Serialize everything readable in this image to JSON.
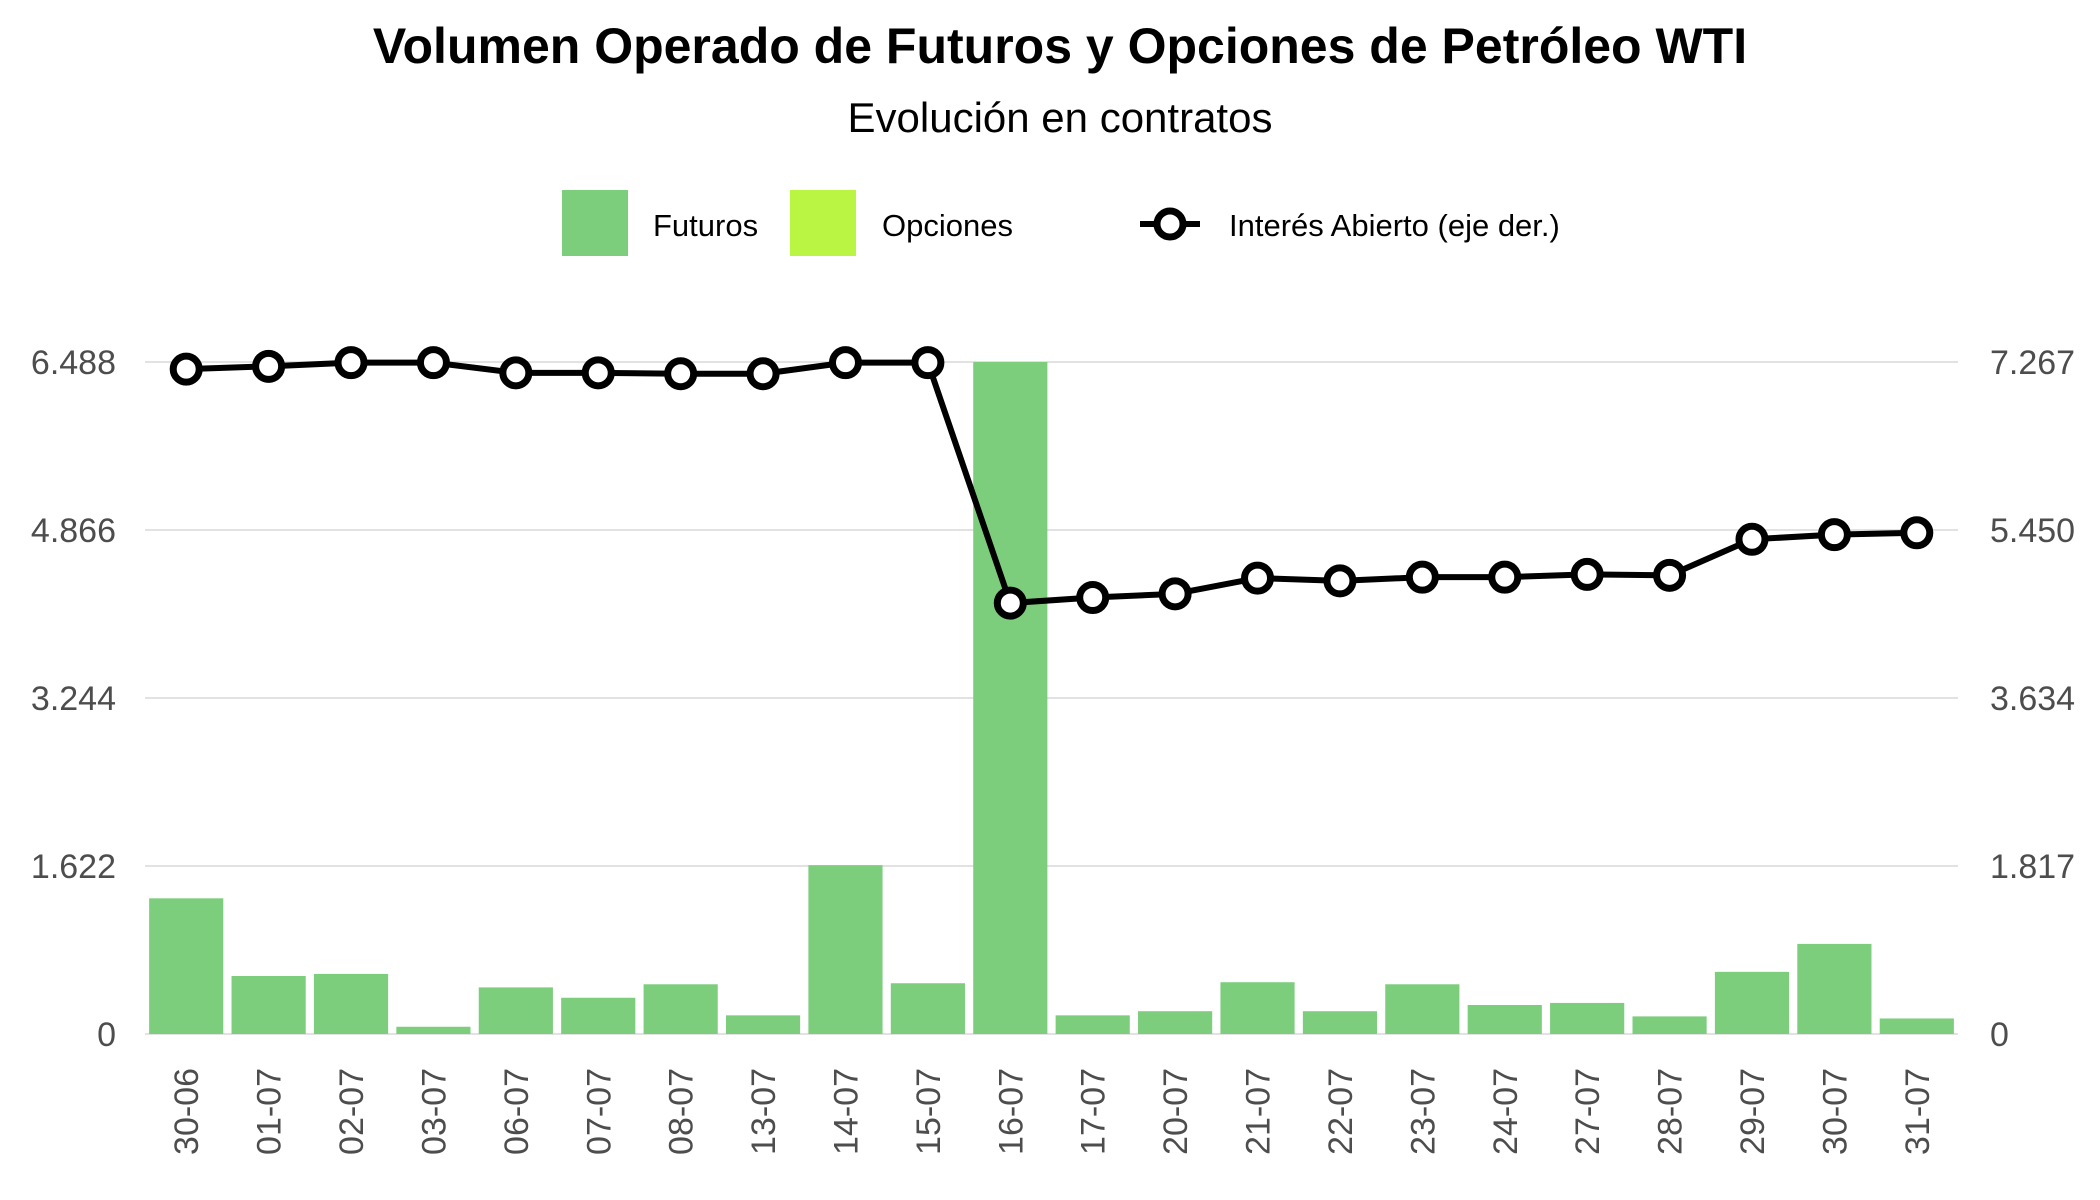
{
  "chart_data": {
    "type": "bar",
    "title": "Volumen Operado de Futuros y Opciones de Petróleo WTI",
    "subtitle": "Evolución en contratos",
    "categories": [
      "30-06",
      "01-07",
      "02-07",
      "03-07",
      "06-07",
      "07-07",
      "08-07",
      "13-07",
      "14-07",
      "15-07",
      "16-07",
      "17-07",
      "20-07",
      "21-07",
      "22-07",
      "23-07",
      "24-07",
      "27-07",
      "28-07",
      "29-07",
      "30-07",
      "31-07"
    ],
    "series": [
      {
        "name": "Futuros",
        "type": "bar",
        "axis": "left",
        "color": "#7ccd7c",
        "values": [
          1310,
          560,
          580,
          70,
          450,
          350,
          480,
          180,
          1630,
          490,
          6488,
          180,
          220,
          500,
          220,
          480,
          280,
          300,
          170,
          600,
          870,
          150
        ]
      },
      {
        "name": "Opciones",
        "type": "bar",
        "axis": "left",
        "color": "#b9f542",
        "values": [
          0,
          0,
          0,
          0,
          0,
          0,
          0,
          0,
          0,
          0,
          0,
          0,
          0,
          0,
          0,
          0,
          0,
          0,
          0,
          0,
          0,
          0
        ]
      },
      {
        "name": "Interés Abierto (eje der.)",
        "type": "line",
        "axis": "right",
        "color": "#000000",
        "values": [
          7190,
          7220,
          7260,
          7260,
          7150,
          7150,
          7140,
          7140,
          7260,
          7260,
          4660,
          4720,
          4760,
          4930,
          4900,
          4940,
          4940,
          4970,
          4960,
          5350,
          5400,
          5420
        ]
      }
    ],
    "y_left": {
      "ylim": [
        0,
        6488
      ],
      "ticks": [
        0,
        1622,
        3244,
        4866,
        6488
      ],
      "tick_labels": [
        "0",
        "1.622",
        "3.244",
        "4.866",
        "6.488"
      ]
    },
    "y_right": {
      "ylim": [
        0,
        7267
      ],
      "ticks": [
        0,
        1817,
        3634,
        5450,
        7267
      ],
      "tick_labels": [
        "0",
        "1.817",
        "3.634",
        "5.450",
        "7.267"
      ]
    },
    "grid": true,
    "legend": "top"
  }
}
